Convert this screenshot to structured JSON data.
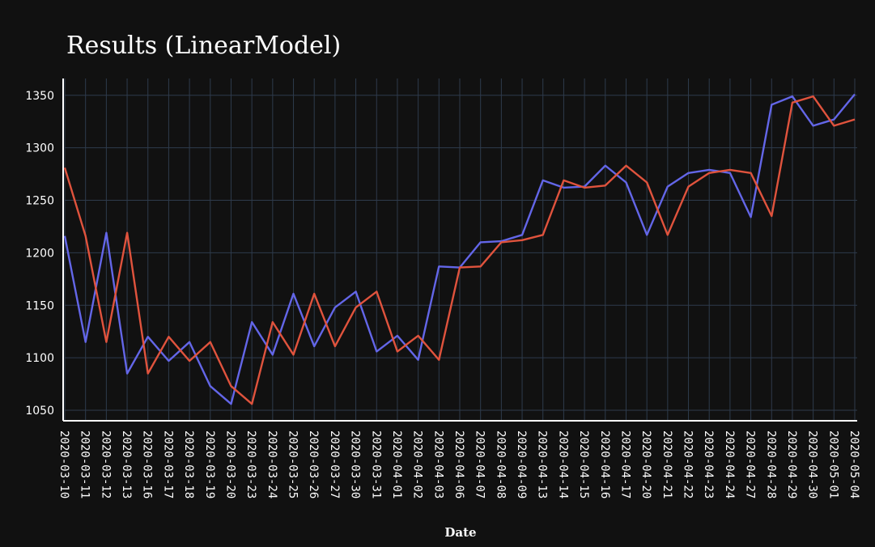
{
  "chart_data": {
    "type": "line",
    "title": "Results (LinearModel)",
    "xlabel": "Date",
    "ylabel": "",
    "ylim": [
      1040,
      1366
    ],
    "yticks": [
      1050,
      1100,
      1150,
      1200,
      1250,
      1300,
      1350
    ],
    "grid": true,
    "categories": [
      "2020-03-10",
      "2020-03-11",
      "2020-03-12",
      "2020-03-13",
      "2020-03-16",
      "2020-03-17",
      "2020-03-18",
      "2020-03-19",
      "2020-03-20",
      "2020-03-23",
      "2020-03-24",
      "2020-03-25",
      "2020-03-26",
      "2020-03-27",
      "2020-03-30",
      "2020-03-31",
      "2020-04-01",
      "2020-04-02",
      "2020-04-03",
      "2020-04-06",
      "2020-04-07",
      "2020-04-08",
      "2020-04-09",
      "2020-04-13",
      "2020-04-14",
      "2020-04-15",
      "2020-04-16",
      "2020-04-17",
      "2020-04-20",
      "2020-04-21",
      "2020-04-22",
      "2020-04-23",
      "2020-04-24",
      "2020-04-27",
      "2020-04-28",
      "2020-04-29",
      "2020-04-30",
      "2020-05-01",
      "2020-05-04"
    ],
    "series": [
      {
        "color": "#6366e8",
        "values": [
          1216,
          1115,
          1219,
          1085,
          1120,
          1097,
          1115,
          1073,
          1056,
          1134,
          1103,
          1161,
          1111,
          1148,
          1163,
          1106,
          1121,
          1098,
          1187,
          1186,
          1210,
          1211,
          1217,
          1269,
          1262,
          1263,
          1283,
          1267,
          1217,
          1263,
          1276,
          1279,
          1276,
          1234,
          1341,
          1349,
          1321,
          1327,
          1351
        ]
      },
      {
        "color": "#e0533d",
        "values": [
          1281,
          1216,
          1115,
          1219,
          1085,
          1120,
          1097,
          1115,
          1073,
          1056,
          1134,
          1103,
          1161,
          1111,
          1148,
          1163,
          1106,
          1121,
          1098,
          1186,
          1187,
          1210,
          1212,
          1217,
          1269,
          1262,
          1264,
          1283,
          1267,
          1217,
          1263,
          1276,
          1279,
          1276,
          1235,
          1343,
          1349,
          1321,
          1327
        ]
      }
    ]
  }
}
